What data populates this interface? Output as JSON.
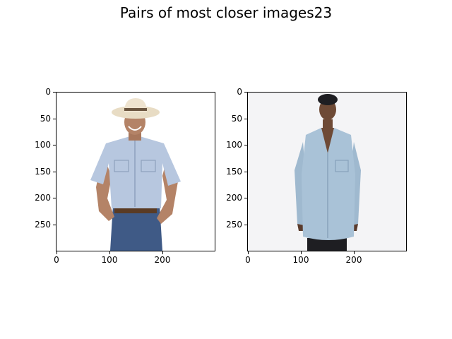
{
  "figure": {
    "title": "Pairs of most closer images23"
  },
  "chart_data": {
    "type": "image-pair",
    "title": "Pairs of most closer images23",
    "panels": [
      {
        "content": "product image: man in light-blue short-sleeve shirt, cowboy hat, jeans",
        "xlim": [
          0,
          300
        ],
        "ylim": [
          300,
          0
        ],
        "xticks": [
          0,
          100,
          200
        ],
        "yticks": [
          0,
          50,
          100,
          150,
          200,
          250
        ]
      },
      {
        "content": "product image: woman in light-blue chambray long shirt",
        "xlim": [
          0,
          300
        ],
        "ylim": [
          300,
          0
        ],
        "xticks": [
          0,
          100,
          200
        ],
        "yticks": [
          0,
          50,
          100,
          150,
          200,
          250
        ]
      }
    ]
  },
  "colors": {
    "shirt_man": "#b7c7df",
    "shirt_woman": "#9fb9cf",
    "jeans": "#3f5a86",
    "hat": "#e8dcc4",
    "skin": "#b48367",
    "skin_dark": "#6e4a36",
    "bg_left": "#ffffff",
    "bg_right": "#f4f4f6"
  }
}
